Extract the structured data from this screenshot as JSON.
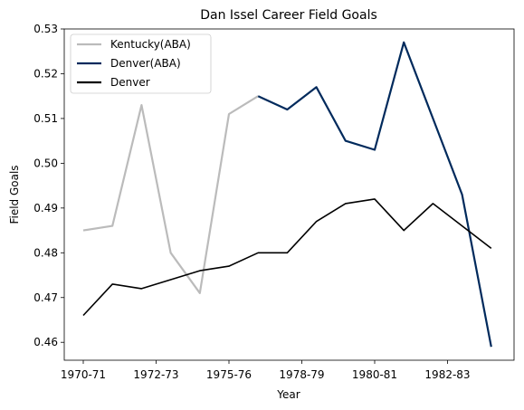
{
  "chart_data": {
    "type": "line",
    "title": "Dan Issel Career Field Goals",
    "xlabel": "Year",
    "ylabel": "Field Goals",
    "x_tick_labels": [
      "1970-71",
      "1972-73",
      "1975-76",
      "1978-79",
      "1980-81",
      "1982-83"
    ],
    "y_ticks": [
      "0.46",
      "0.47",
      "0.48",
      "0.49",
      "0.50",
      "0.51",
      "0.52",
      "0.53"
    ],
    "ylim": [
      0.456,
      0.53
    ],
    "legend_position": "top-left",
    "series": [
      {
        "name": "Kentucky(ABA)",
        "color": "#bbbbbb",
        "values": [
          0.485,
          0.486,
          0.513,
          0.48,
          0.471,
          0.511,
          0.515
        ]
      },
      {
        "name": "Denver(ABA)",
        "color": "#002a5c",
        "values": [
          null,
          null,
          null,
          null,
          null,
          null,
          0.515,
          0.512,
          0.517,
          0.505,
          0.503,
          0.527,
          0.51,
          0.493,
          0.459
        ]
      },
      {
        "name": "Denver",
        "color": "#000000",
        "values": [
          0.466,
          0.473,
          0.472,
          0.474,
          0.476,
          0.477,
          0.48,
          0.48,
          0.487,
          0.491,
          0.492,
          0.485,
          0.491,
          0.486,
          0.481
        ]
      }
    ]
  }
}
